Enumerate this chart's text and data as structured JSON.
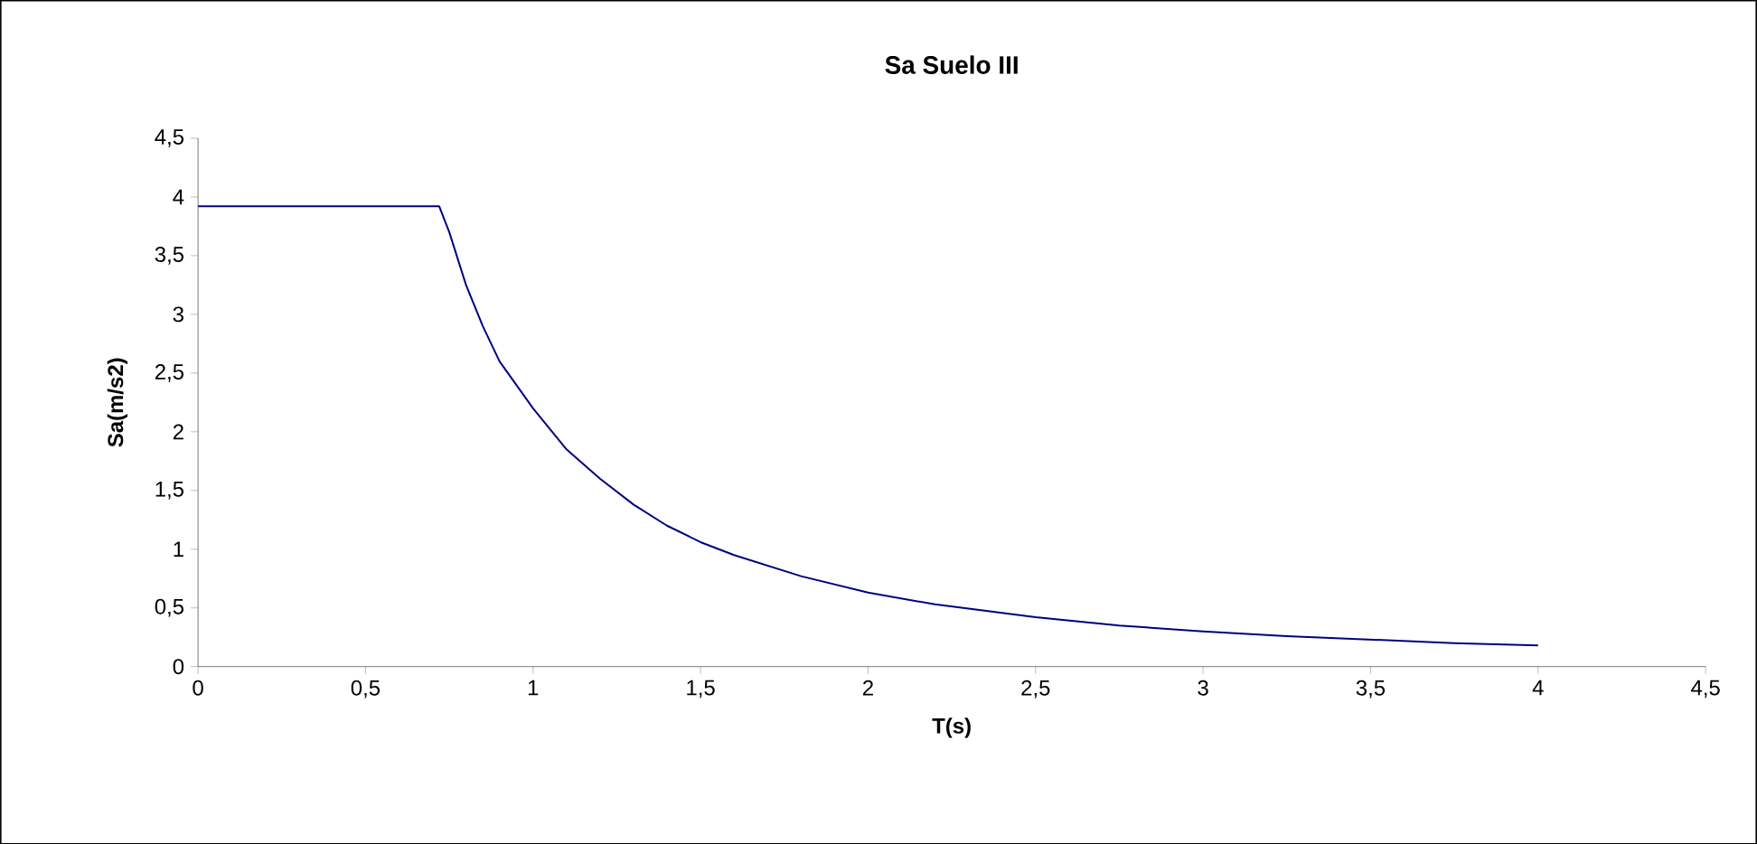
{
  "chart_data": {
    "type": "line",
    "title": "Sa Suelo III",
    "xlabel": "T(s)",
    "ylabel": "Sa(m/s2)",
    "x": [
      0,
      0.72,
      0.75,
      0.8,
      0.85,
      0.9,
      1.0,
      1.1,
      1.2,
      1.3,
      1.4,
      1.5,
      1.6,
      1.8,
      2.0,
      2.2,
      2.5,
      2.75,
      3.0,
      3.25,
      3.5,
      3.75,
      4.0
    ],
    "series": [
      {
        "color": "#000080",
        "values": [
          3.92,
          3.92,
          3.7,
          3.25,
          2.9,
          2.6,
          2.2,
          1.85,
          1.6,
          1.38,
          1.2,
          1.06,
          0.95,
          0.77,
          0.63,
          0.53,
          0.42,
          0.35,
          0.3,
          0.26,
          0.23,
          0.2,
          0.18
        ]
      }
    ],
    "xlim": [
      0,
      4.5
    ],
    "ylim": [
      0,
      4.5
    ],
    "xticks": [
      0,
      {
        "value": 0.5,
        "label": "0,5"
      },
      1,
      {
        "value": 1.5,
        "label": "1,5"
      },
      2,
      {
        "value": 2.5,
        "label": "2,5"
      },
      3,
      {
        "value": 3.5,
        "label": "3,5"
      },
      4,
      {
        "value": 4.5,
        "label": "4,5"
      }
    ],
    "yticks": [
      0,
      {
        "value": 0.5,
        "label": "0,5"
      },
      1,
      {
        "value": 1.5,
        "label": "1,5"
      },
      2,
      {
        "value": 2.5,
        "label": "2,5"
      },
      3,
      {
        "value": 3.5,
        "label": "3,5"
      },
      4,
      {
        "value": 4.5,
        "label": "4,5"
      }
    ],
    "grid": false,
    "marker": "none",
    "line_style": "solid"
  }
}
